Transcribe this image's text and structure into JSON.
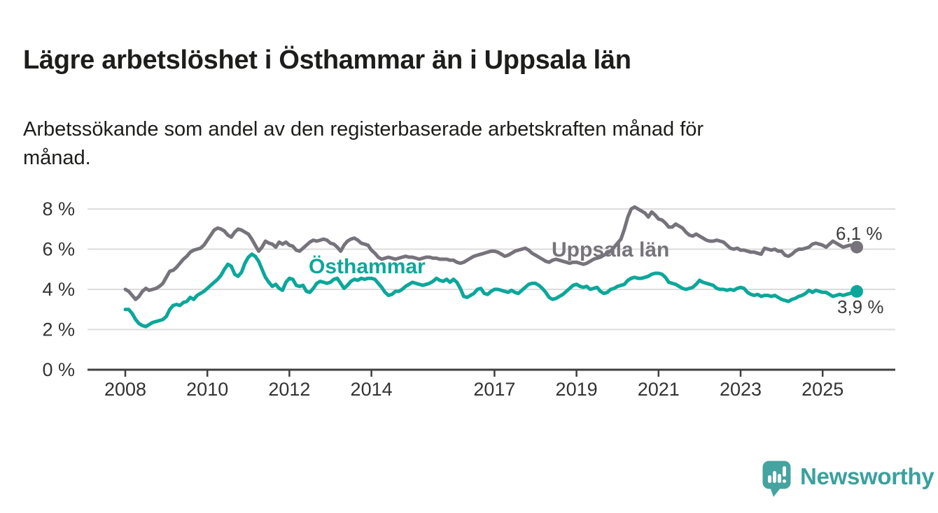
{
  "header": {
    "title": "Lägre arbetslöshet i Östhammar än i Uppsala län",
    "subtitle": "Arbetssökande som andel av den registerbaserade arbetskraften månad för månad.",
    "subtitle_lines": [
      "Arbetssökande som andel av den registerbaserade arbetskraften månad för",
      "månad."
    ]
  },
  "footer": {
    "brand": "Newsworthy",
    "brand_color": "#3aa19d",
    "icon": "speech-bubble-bar-chart"
  },
  "colors": {
    "background": "#ffffff",
    "gridline": "#dcdcdc",
    "axis": "#3f3f3f",
    "tick_text": "#333333",
    "uppsala_gray": "#76737b",
    "osthammar_teal": "#0ba79a"
  },
  "chart_data": {
    "type": "line",
    "title": "Lägre arbetslöshet i Östhammar än i Uppsala län",
    "subtitle": "Arbetssökande som andel av den registerbaserade arbetskraften månad för månad.",
    "unit": "%",
    "frequency": "monthly",
    "x_start": "2008-01",
    "x_end": "2025-11",
    "x_tick_years": [
      2008,
      2010,
      2012,
      2014,
      2017,
      2019,
      2021,
      2023,
      2025
    ],
    "y_ticks": [
      0,
      2,
      4,
      6,
      8
    ],
    "y_tick_suffix": " %",
    "ylim": [
      0,
      8.6
    ],
    "grid": true,
    "legend_position": "inline-labels",
    "series": [
      {
        "name": "Uppsala län",
        "color": "#76737b",
        "end_label": "6,1 %",
        "end_value": 6.1,
        "values": [
          4.0,
          3.9,
          3.7,
          3.5,
          3.65,
          3.9,
          4.05,
          3.95,
          4.0,
          4.05,
          4.15,
          4.3,
          4.6,
          4.9,
          4.95,
          5.1,
          5.3,
          5.5,
          5.65,
          5.85,
          5.95,
          6.0,
          6.05,
          6.2,
          6.45,
          6.7,
          6.95,
          7.05,
          7.0,
          6.9,
          6.7,
          6.6,
          6.85,
          7.0,
          6.95,
          6.85,
          6.75,
          6.5,
          6.2,
          5.9,
          6.1,
          6.4,
          6.3,
          6.25,
          6.1,
          6.35,
          6.25,
          6.35,
          6.2,
          6.15,
          5.95,
          5.9,
          6.05,
          6.2,
          6.35,
          6.45,
          6.4,
          6.45,
          6.5,
          6.45,
          6.3,
          6.25,
          6.1,
          5.9,
          6.2,
          6.4,
          6.5,
          6.55,
          6.45,
          6.3,
          6.25,
          6.2,
          5.95,
          5.8,
          5.6,
          5.5,
          5.55,
          5.6,
          5.55,
          5.5,
          5.55,
          5.6,
          5.65,
          5.6,
          5.6,
          5.55,
          5.5,
          5.55,
          5.6,
          5.6,
          5.55,
          5.55,
          5.5,
          5.5,
          5.5,
          5.45,
          5.45,
          5.35,
          5.3,
          5.35,
          5.45,
          5.55,
          5.65,
          5.7,
          5.75,
          5.8,
          5.85,
          5.9,
          5.9,
          5.85,
          5.75,
          5.65,
          5.7,
          5.8,
          5.9,
          5.95,
          6.0,
          6.05,
          5.95,
          5.8,
          5.7,
          5.6,
          5.5,
          5.4,
          5.35,
          5.45,
          5.5,
          5.45,
          5.4,
          5.35,
          5.3,
          5.35,
          5.35,
          5.3,
          5.25,
          5.3,
          5.4,
          5.5,
          5.55,
          5.6,
          5.7,
          5.8,
          5.9,
          6.1,
          6.3,
          6.5,
          7.0,
          7.6,
          8.0,
          8.1,
          8.0,
          7.9,
          7.8,
          7.6,
          7.85,
          7.7,
          7.5,
          7.45,
          7.3,
          7.1,
          7.1,
          7.25,
          7.15,
          7.05,
          6.85,
          6.7,
          6.65,
          6.75,
          6.65,
          6.55,
          6.45,
          6.4,
          6.4,
          6.45,
          6.4,
          6.35,
          6.2,
          6.05,
          6.0,
          6.05,
          5.95,
          5.95,
          5.9,
          5.85,
          5.85,
          5.8,
          5.75,
          6.05,
          6.0,
          5.95,
          6.0,
          5.9,
          5.9,
          5.7,
          5.65,
          5.75,
          5.9,
          6.0,
          6.0,
          6.05,
          6.1,
          6.25,
          6.3,
          6.25,
          6.2,
          6.1,
          6.25,
          6.4,
          6.3,
          6.2,
          6.1,
          6.15,
          6.2,
          6.15,
          6.1
        ]
      },
      {
        "name": "Östhammar",
        "color": "#0ba79a",
        "end_label": "3,9 %",
        "end_value": 3.9,
        "values": [
          3.0,
          3.0,
          2.8,
          2.5,
          2.3,
          2.2,
          2.15,
          2.25,
          2.35,
          2.4,
          2.45,
          2.5,
          2.65,
          3.0,
          3.2,
          3.25,
          3.2,
          3.35,
          3.4,
          3.6,
          3.5,
          3.7,
          3.8,
          3.9,
          4.05,
          4.2,
          4.35,
          4.5,
          4.7,
          5.0,
          5.25,
          5.15,
          4.75,
          4.65,
          4.85,
          5.3,
          5.6,
          5.75,
          5.65,
          5.4,
          5.0,
          4.6,
          4.35,
          4.15,
          4.25,
          4.05,
          3.95,
          4.35,
          4.55,
          4.5,
          4.2,
          4.15,
          4.2,
          3.9,
          3.85,
          4.05,
          4.3,
          4.4,
          4.35,
          4.3,
          4.35,
          4.5,
          4.55,
          4.3,
          4.05,
          4.2,
          4.4,
          4.5,
          4.45,
          4.55,
          4.5,
          4.55,
          4.55,
          4.5,
          4.3,
          4.1,
          3.85,
          3.7,
          3.75,
          3.9,
          3.9,
          4.0,
          4.15,
          4.25,
          4.35,
          4.3,
          4.25,
          4.2,
          4.25,
          4.3,
          4.4,
          4.55,
          4.45,
          4.4,
          4.5,
          4.35,
          4.5,
          4.35,
          4.05,
          3.65,
          3.6,
          3.7,
          3.8,
          4.0,
          4.05,
          3.8,
          3.75,
          3.9,
          4.0,
          4.0,
          3.95,
          3.9,
          3.85,
          3.95,
          3.85,
          3.8,
          3.95,
          4.1,
          4.25,
          4.3,
          4.3,
          4.2,
          4.05,
          3.85,
          3.6,
          3.5,
          3.55,
          3.65,
          3.75,
          3.9,
          4.05,
          4.2,
          4.25,
          4.15,
          4.1,
          4.15,
          4.0,
          4.05,
          4.1,
          3.9,
          3.8,
          3.85,
          4.0,
          4.05,
          4.15,
          4.2,
          4.25,
          4.45,
          4.55,
          4.6,
          4.55,
          4.55,
          4.6,
          4.65,
          4.75,
          4.8,
          4.8,
          4.75,
          4.6,
          4.35,
          4.3,
          4.25,
          4.15,
          4.05,
          4.0,
          4.05,
          4.1,
          4.25,
          4.45,
          4.35,
          4.3,
          4.25,
          4.2,
          4.05,
          4.0,
          4.0,
          3.95,
          4.0,
          3.95,
          4.05,
          4.1,
          4.05,
          3.85,
          3.75,
          3.7,
          3.75,
          3.65,
          3.7,
          3.7,
          3.65,
          3.7,
          3.6,
          3.5,
          3.45,
          3.4,
          3.5,
          3.55,
          3.65,
          3.7,
          3.8,
          3.95,
          3.85,
          3.95,
          3.9,
          3.85,
          3.85,
          3.75,
          3.65,
          3.7,
          3.75,
          3.7,
          3.75,
          3.8,
          3.85,
          3.9
        ]
      }
    ]
  }
}
